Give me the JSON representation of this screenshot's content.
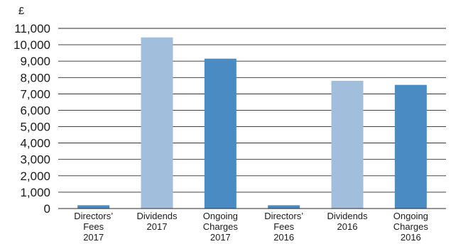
{
  "chart_data": {
    "type": "bar",
    "ylabel": "£",
    "ylim": [
      0,
      11000
    ],
    "yticks": [
      0,
      1000,
      2000,
      3000,
      4000,
      5000,
      6000,
      7000,
      8000,
      9000,
      10000,
      11000
    ],
    "ytick_labels": [
      "0",
      "1,000",
      "2,000",
      "3,000",
      "4,000",
      "5,000",
      "6,000",
      "7,000",
      "8,000",
      "9,000",
      "10,000",
      "11,000"
    ],
    "grid": true,
    "categories": [
      [
        "Directors’",
        "Fees",
        "2017"
      ],
      [
        "Dividends",
        "2017"
      ],
      [
        "Ongoing",
        "Charges",
        "2017"
      ],
      [
        "Directors’",
        "Fees",
        "2016"
      ],
      [
        "Dividends",
        "2016"
      ],
      [
        "Ongoing",
        "Charges",
        "2016"
      ]
    ],
    "values": [
      200,
      10450,
      9150,
      200,
      7800,
      7550
    ],
    "bar_colors": [
      "#4a8bc4",
      "#a2bedd",
      "#4a8bc4",
      "#4a8bc4",
      "#a2bedd",
      "#4a8bc4"
    ]
  }
}
